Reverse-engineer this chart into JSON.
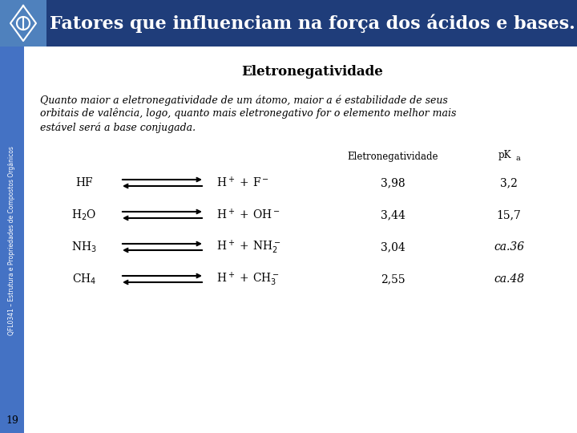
{
  "title": "Fatores que influenciam na força dos ácidos e bases.",
  "title_bg": "#1F3D7A",
  "title_color": "#FFFFFF",
  "slide_bg": "#FFFFFF",
  "left_bar_color": "#4472C4",
  "section_title": "Eletronegatividade",
  "paragraph_lines": [
    "Quanto maior a eletronegatividade de um átomo, maior a é estabilidade de seus",
    "orbitais de valência, logo, quanto mais eletronegativo for o elemento melhor mais",
    "estável será a base conjugada."
  ],
  "col_header_en": "Eletronegatividade",
  "col_header_pka": "pK",
  "col_header_pka_sub": "a",
  "rows": [
    {
      "acid": "HF",
      "prod": "H$^+$ + F$^-$",
      "en": "3,98",
      "pka": "3,2",
      "pka_italic": false
    },
    {
      "acid": "H$_2$O",
      "prod": "H$^+$ + OH$^-$",
      "en": "3,44",
      "pka": "15,7",
      "pka_italic": false
    },
    {
      "acid": "NH$_3$",
      "prod": "H$^+$ + NH$_2^-$",
      "en": "3,04",
      "pka": "ca.36",
      "pka_italic": true
    },
    {
      "acid": "CH$_4$",
      "prod": "H$^+$ + CH$_3^-$",
      "en": "2,55",
      "pka": "ca.48",
      "pka_italic": true
    }
  ],
  "footer_text": "QFL0341 – Estrutura e Propriedades de Compostos Orgânicos",
  "page_number": "19"
}
